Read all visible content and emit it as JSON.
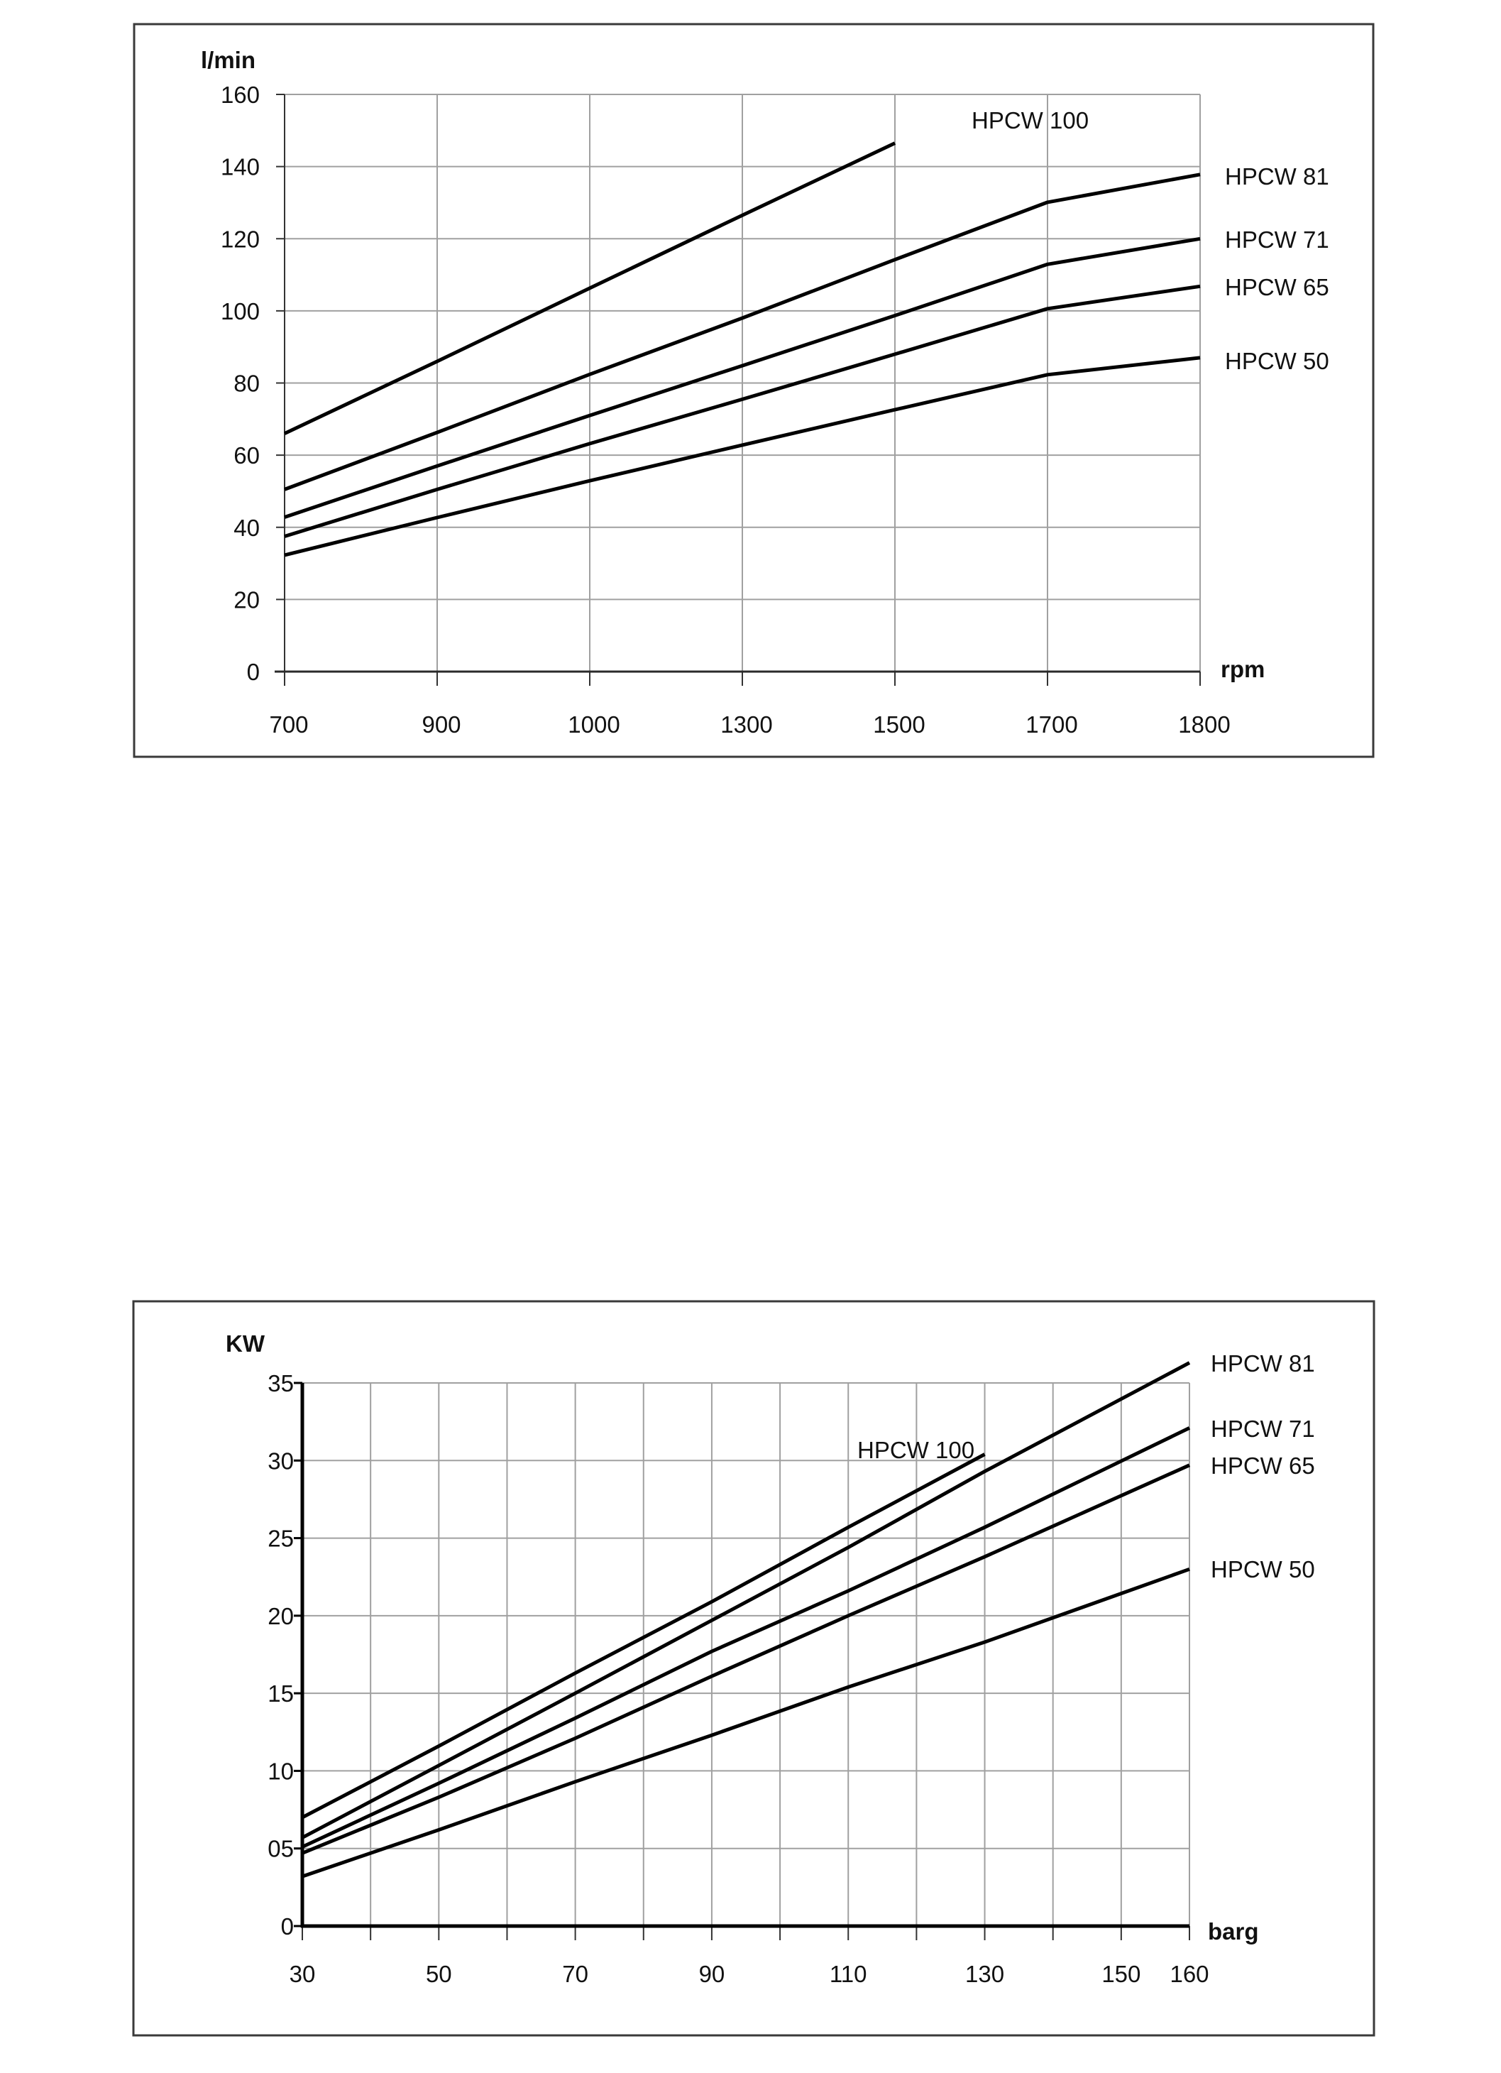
{
  "chart_data": [
    {
      "type": "line",
      "title": "",
      "xlabel": "rpm",
      "ylabel": "l/min",
      "x_axis_kind": "categorical",
      "categories": [
        "700",
        "900",
        "1000",
        "1300",
        "1500",
        "1700",
        "1800"
      ],
      "y_ticks": [
        "0",
        "20",
        "40",
        "60",
        "80",
        "100",
        "120",
        "140",
        "160"
      ],
      "ylim": [
        0,
        160
      ],
      "grid": true,
      "legend": "direct labels at line ends",
      "series": [
        {
          "name": "HPCW 100",
          "values": [
            66,
            86,
            106.3,
            126.5,
            146.5,
            null,
            null
          ]
        },
        {
          "name": "HPCW 81",
          "values": [
            50.5,
            66.3,
            82.4,
            98,
            114.2,
            130.1,
            137.8
          ]
        },
        {
          "name": "HPCW 71",
          "values": [
            42.8,
            57,
            71,
            84.8,
            98.7,
            112.9,
            120
          ]
        },
        {
          "name": "HPCW 65",
          "values": [
            37.5,
            50.5,
            63.2,
            75.5,
            88,
            100.6,
            106.8
          ]
        },
        {
          "name": "HPCW 50",
          "values": [
            32.3,
            42.7,
            52.9,
            62.8,
            72.6,
            82.3,
            87
          ]
        }
      ]
    },
    {
      "type": "line",
      "title": "",
      "xlabel": "barg",
      "ylabel": "KW",
      "x_axis_kind": "numeric",
      "x_ticks": [
        "30",
        "50",
        "70",
        "90",
        "110",
        "130",
        "150",
        "160"
      ],
      "x_tick_values": [
        30,
        50,
        70,
        90,
        110,
        130,
        150,
        160
      ],
      "x_grid_step": 10,
      "xlim": [
        30,
        160
      ],
      "y_ticks": [
        "0",
        "05",
        "10",
        "15",
        "20",
        "25",
        "30",
        "35"
      ],
      "y_tick_values": [
        0,
        5,
        10,
        15,
        20,
        25,
        30,
        35
      ],
      "ylim": [
        0,
        35
      ],
      "grid": true,
      "legend": "direct labels at line ends",
      "series": [
        {
          "name": "HPCW 100",
          "x": [
            30,
            50,
            70,
            90,
            110,
            130
          ],
          "values": [
            7.0,
            11.6,
            16.3,
            20.9,
            25.7,
            30.4
          ]
        },
        {
          "name": "HPCW 81",
          "x": [
            30,
            50,
            70,
            90,
            110,
            130,
            160
          ],
          "values": [
            5.7,
            10.35,
            15.0,
            19.7,
            24.4,
            29.3,
            36.3
          ]
        },
        {
          "name": "HPCW 71",
          "x": [
            30,
            50,
            70,
            90,
            110,
            130,
            160
          ],
          "values": [
            5.1,
            9.2,
            13.4,
            17.7,
            21.6,
            25.7,
            32.1
          ]
        },
        {
          "name": "HPCW 65",
          "x": [
            30,
            50,
            70,
            90,
            110,
            130,
            160
          ],
          "values": [
            4.7,
            8.3,
            12.1,
            16.1,
            20.0,
            23.8,
            29.7
          ]
        },
        {
          "name": "HPCW 50",
          "x": [
            30,
            50,
            70,
            90,
            110,
            130,
            160
          ],
          "values": [
            3.2,
            6.2,
            9.3,
            12.3,
            15.4,
            18.3,
            23.0
          ]
        }
      ]
    }
  ],
  "flow_chart": {
    "y_unit": "l/min",
    "x_unit": "rpm",
    "labels": {
      "hpcw100": "HPCW 100",
      "hpcw81": "HPCW 81",
      "hpcw71": "HPCW 71",
      "hpcw65": "HPCW 65",
      "hpcw50": "HPCW 50"
    }
  },
  "power_chart": {
    "y_unit": "KW",
    "x_unit": "barg",
    "labels": {
      "hpcw100": "HPCW 100",
      "hpcw81": "HPCW 81",
      "hpcw71": "HPCW 71",
      "hpcw65": "HPCW 65",
      "hpcw50": "HPCW 50"
    }
  }
}
